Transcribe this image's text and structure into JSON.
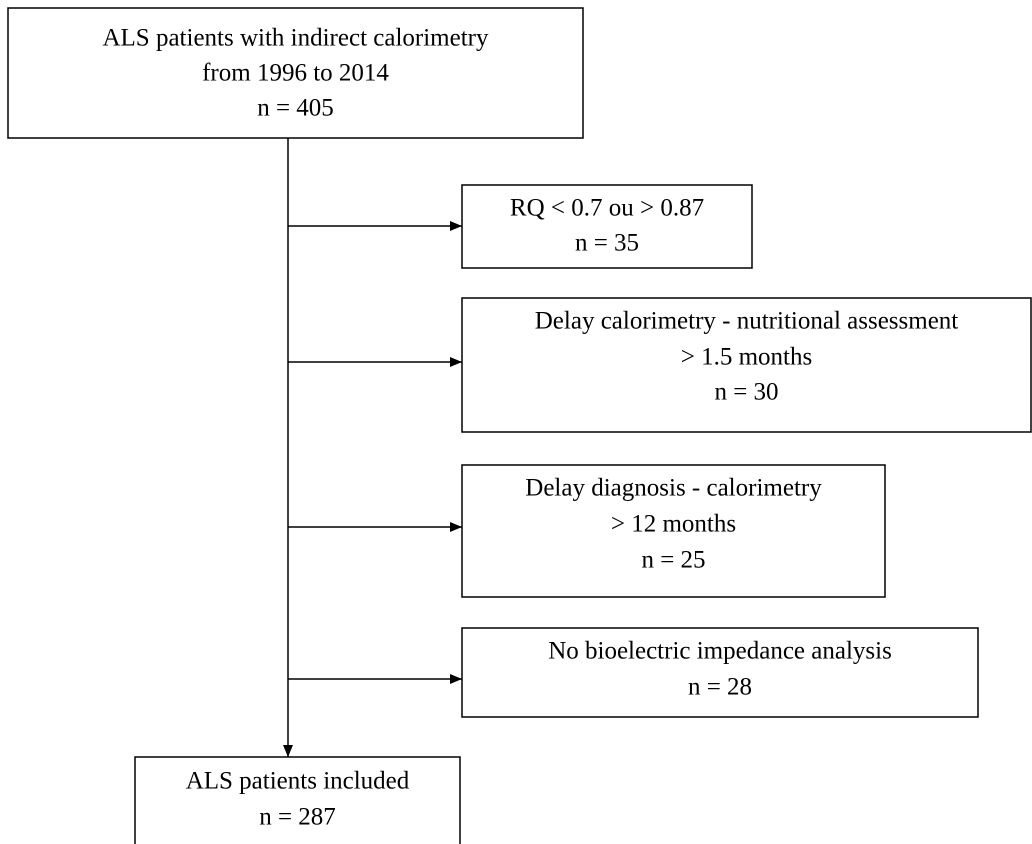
{
  "nodes": [
    {
      "lines": [
        "ALS patients with indirect calorimetry",
        "from 1996 to 2014",
        "n = 405"
      ]
    },
    {
      "lines": [
        "RQ < 0.7 ou > 0.87",
        "n = 35"
      ]
    },
    {
      "lines": [
        "Delay calorimetry - nutritional assessment",
        "> 1.5 months",
        "n = 30"
      ]
    },
    {
      "lines": [
        "Delay diagnosis - calorimetry",
        "> 12 months",
        "n = 25"
      ]
    },
    {
      "lines": [
        "No bioelectric impedance analysis",
        "n = 28"
      ]
    },
    {
      "lines": [
        "ALS patients included",
        "n = 287"
      ]
    }
  ]
}
